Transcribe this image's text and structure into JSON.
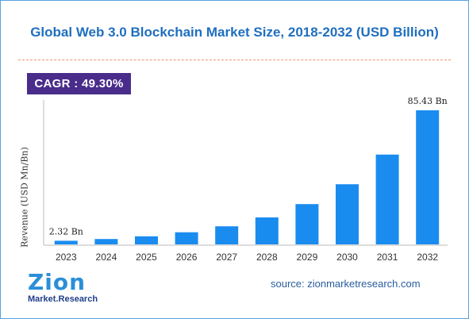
{
  "chart_data": {
    "type": "bar",
    "title": "Global Web 3.0 Blockchain Market Size, 2018-2032 (USD Billion)",
    "ylabel": "Revenue (USD Mn/Bn)",
    "xlabel": "",
    "categories": [
      "2023",
      "2024",
      "2025",
      "2026",
      "2027",
      "2028",
      "2029",
      "2030",
      "2031",
      "2032"
    ],
    "values": [
      2.32,
      3.46,
      5.17,
      7.72,
      11.52,
      17.2,
      25.68,
      38.34,
      57.24,
      85.43
    ],
    "data_labels": {
      "0": "2.32 Bn",
      "9": "85.43 Bn"
    },
    "ylim": [
      0,
      92
    ],
    "grid": false,
    "bar_color": "#1a8cf0"
  },
  "cagr_label": "CAGR : 49.30%",
  "source": "source: zionmarketresearch.com",
  "logo": {
    "top_text": "Zion",
    "bottom_text": "Market.Research"
  },
  "colors": {
    "title": "#1f6fbf",
    "cagr_bg": "#4a2c8a",
    "divider": "#f0956b",
    "bars": "#1a8cf0"
  }
}
